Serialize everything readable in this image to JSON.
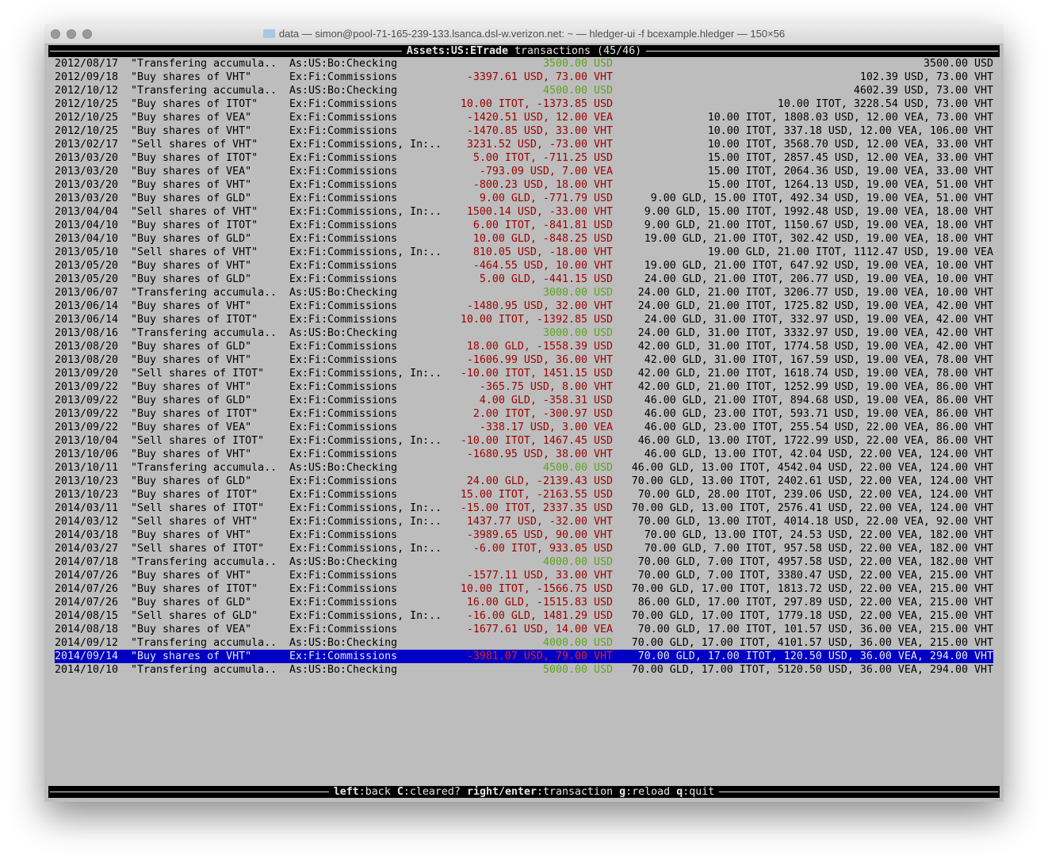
{
  "window": {
    "title": "data — simon@pool-71-165-239-133.lsanca.dsl-w.verizon.net: ~ — hledger-ui -f bcexample.hledger — 150×56"
  },
  "header": {
    "account": "Assets:US:ETrade",
    "rest": " transactions (45/46)"
  },
  "footer": {
    "keys": [
      {
        "key": "left",
        "action": "back"
      },
      {
        "key": "C",
        "action": "cleared?"
      },
      {
        "key": "right/enter",
        "action": "transaction"
      },
      {
        "key": "g",
        "action": "reload"
      },
      {
        "key": "q",
        "action": "quit"
      }
    ]
  },
  "colors": {
    "positive": "#5fa31c",
    "negative": "#9b0000",
    "selection": "#0000c4"
  },
  "selected_index": 44,
  "rows": [
    {
      "date": "2012/08/17",
      "desc": "\"Transfering accumula..",
      "acct": "As:US:Bo:Checking",
      "amt": "3500.00 USD",
      "bal": "3500.00 USD",
      "sign": "pos"
    },
    {
      "date": "2012/09/18",
      "desc": "\"Buy shares of VHT\"",
      "acct": "Ex:Fi:Commissions",
      "amt": "-3397.61 USD, 73.00 VHT",
      "bal": "102.39 USD, 73.00 VHT",
      "sign": "neg"
    },
    {
      "date": "2012/10/12",
      "desc": "\"Transfering accumula..",
      "acct": "As:US:Bo:Checking",
      "amt": "4500.00 USD",
      "bal": "4602.39 USD, 73.00 VHT",
      "sign": "pos"
    },
    {
      "date": "2012/10/25",
      "desc": "\"Buy shares of ITOT\"",
      "acct": "Ex:Fi:Commissions",
      "amt": "10.00 ITOT, -1373.85 USD",
      "bal": "10.00 ITOT, 3228.54 USD, 73.00 VHT",
      "sign": "neg"
    },
    {
      "date": "2012/10/25",
      "desc": "\"Buy shares of VEA\"",
      "acct": "Ex:Fi:Commissions",
      "amt": "-1420.51 USD, 12.00 VEA",
      "bal": "10.00 ITOT, 1808.03 USD, 12.00 VEA, 73.00 VHT",
      "sign": "neg"
    },
    {
      "date": "2012/10/25",
      "desc": "\"Buy shares of VHT\"",
      "acct": "Ex:Fi:Commissions",
      "amt": "-1470.85 USD, 33.00 VHT",
      "bal": "10.00 ITOT, 337.18 USD, 12.00 VEA, 106.00 VHT",
      "sign": "neg"
    },
    {
      "date": "2013/02/17",
      "desc": "\"Sell shares of VHT\"",
      "acct": "Ex:Fi:Commissions, In:..",
      "amt": "3231.52 USD, -73.00 VHT",
      "bal": "10.00 ITOT, 3568.70 USD, 12.00 VEA, 33.00 VHT",
      "sign": "neg"
    },
    {
      "date": "2013/03/20",
      "desc": "\"Buy shares of ITOT\"",
      "acct": "Ex:Fi:Commissions",
      "amt": "5.00 ITOT, -711.25 USD",
      "bal": "15.00 ITOT, 2857.45 USD, 12.00 VEA, 33.00 VHT",
      "sign": "neg"
    },
    {
      "date": "2013/03/20",
      "desc": "\"Buy shares of VEA\"",
      "acct": "Ex:Fi:Commissions",
      "amt": "-793.09 USD, 7.00 VEA",
      "bal": "15.00 ITOT, 2064.36 USD, 19.00 VEA, 33.00 VHT",
      "sign": "neg"
    },
    {
      "date": "2013/03/20",
      "desc": "\"Buy shares of VHT\"",
      "acct": "Ex:Fi:Commissions",
      "amt": "-800.23 USD, 18.00 VHT",
      "bal": "15.00 ITOT, 1264.13 USD, 19.00 VEA, 51.00 VHT",
      "sign": "neg"
    },
    {
      "date": "2013/03/20",
      "desc": "\"Buy shares of GLD\"",
      "acct": "Ex:Fi:Commissions",
      "amt": "9.00 GLD, -771.79 USD",
      "bal": "9.00 GLD, 15.00 ITOT, 492.34 USD, 19.00 VEA, 51.00 VHT",
      "sign": "neg"
    },
    {
      "date": "2013/04/04",
      "desc": "\"Sell shares of VHT\"",
      "acct": "Ex:Fi:Commissions, In:..",
      "amt": "1500.14 USD, -33.00 VHT",
      "bal": "9.00 GLD, 15.00 ITOT, 1992.48 USD, 19.00 VEA, 18.00 VHT",
      "sign": "neg"
    },
    {
      "date": "2013/04/10",
      "desc": "\"Buy shares of ITOT\"",
      "acct": "Ex:Fi:Commissions",
      "amt": "6.00 ITOT, -841.81 USD",
      "bal": "9.00 GLD, 21.00 ITOT, 1150.67 USD, 19.00 VEA, 18.00 VHT",
      "sign": "neg"
    },
    {
      "date": "2013/04/10",
      "desc": "\"Buy shares of GLD\"",
      "acct": "Ex:Fi:Commissions",
      "amt": "10.00 GLD, -848.25 USD",
      "bal": "19.00 GLD, 21.00 ITOT, 302.42 USD, 19.00 VEA, 18.00 VHT",
      "sign": "neg"
    },
    {
      "date": "2013/05/10",
      "desc": "\"Sell shares of VHT\"",
      "acct": "Ex:Fi:Commissions, In:..",
      "amt": "810.05 USD, -18.00 VHT",
      "bal": "19.00 GLD, 21.00 ITOT, 1112.47 USD, 19.00 VEA",
      "sign": "neg"
    },
    {
      "date": "2013/05/20",
      "desc": "\"Buy shares of VHT\"",
      "acct": "Ex:Fi:Commissions",
      "amt": "-464.55 USD, 10.00 VHT",
      "bal": "19.00 GLD, 21.00 ITOT, 647.92 USD, 19.00 VEA, 10.00 VHT",
      "sign": "neg"
    },
    {
      "date": "2013/05/20",
      "desc": "\"Buy shares of GLD\"",
      "acct": "Ex:Fi:Commissions",
      "amt": "5.00 GLD, -441.15 USD",
      "bal": "24.00 GLD, 21.00 ITOT, 206.77 USD, 19.00 VEA, 10.00 VHT",
      "sign": "neg"
    },
    {
      "date": "2013/06/07",
      "desc": "\"Transfering accumula..",
      "acct": "As:US:Bo:Checking",
      "amt": "3000.00 USD",
      "bal": "24.00 GLD, 21.00 ITOT, 3206.77 USD, 19.00 VEA, 10.00 VHT",
      "sign": "pos"
    },
    {
      "date": "2013/06/14",
      "desc": "\"Buy shares of VHT\"",
      "acct": "Ex:Fi:Commissions",
      "amt": "-1480.95 USD, 32.00 VHT",
      "bal": "24.00 GLD, 21.00 ITOT, 1725.82 USD, 19.00 VEA, 42.00 VHT",
      "sign": "neg"
    },
    {
      "date": "2013/06/14",
      "desc": "\"Buy shares of ITOT\"",
      "acct": "Ex:Fi:Commissions",
      "amt": "10.00 ITOT, -1392.85 USD",
      "bal": "24.00 GLD, 31.00 ITOT, 332.97 USD, 19.00 VEA, 42.00 VHT",
      "sign": "neg"
    },
    {
      "date": "2013/08/16",
      "desc": "\"Transfering accumula..",
      "acct": "As:US:Bo:Checking",
      "amt": "3000.00 USD",
      "bal": "24.00 GLD, 31.00 ITOT, 3332.97 USD, 19.00 VEA, 42.00 VHT",
      "sign": "pos"
    },
    {
      "date": "2013/08/20",
      "desc": "\"Buy shares of GLD\"",
      "acct": "Ex:Fi:Commissions",
      "amt": "18.00 GLD, -1558.39 USD",
      "bal": "42.00 GLD, 31.00 ITOT, 1774.58 USD, 19.00 VEA, 42.00 VHT",
      "sign": "neg"
    },
    {
      "date": "2013/08/20",
      "desc": "\"Buy shares of VHT\"",
      "acct": "Ex:Fi:Commissions",
      "amt": "-1606.99 USD, 36.00 VHT",
      "bal": "42.00 GLD, 31.00 ITOT, 167.59 USD, 19.00 VEA, 78.00 VHT",
      "sign": "neg"
    },
    {
      "date": "2013/09/20",
      "desc": "\"Sell shares of ITOT\"",
      "acct": "Ex:Fi:Commissions, In:..",
      "amt": "-10.00 ITOT, 1451.15 USD",
      "bal": "42.00 GLD, 21.00 ITOT, 1618.74 USD, 19.00 VEA, 78.00 VHT",
      "sign": "neg"
    },
    {
      "date": "2013/09/22",
      "desc": "\"Buy shares of VHT\"",
      "acct": "Ex:Fi:Commissions",
      "amt": "-365.75 USD, 8.00 VHT",
      "bal": "42.00 GLD, 21.00 ITOT, 1252.99 USD, 19.00 VEA, 86.00 VHT",
      "sign": "neg"
    },
    {
      "date": "2013/09/22",
      "desc": "\"Buy shares of GLD\"",
      "acct": "Ex:Fi:Commissions",
      "amt": "4.00 GLD, -358.31 USD",
      "bal": "46.00 GLD, 21.00 ITOT, 894.68 USD, 19.00 VEA, 86.00 VHT",
      "sign": "neg"
    },
    {
      "date": "2013/09/22",
      "desc": "\"Buy shares of ITOT\"",
      "acct": "Ex:Fi:Commissions",
      "amt": "2.00 ITOT, -300.97 USD",
      "bal": "46.00 GLD, 23.00 ITOT, 593.71 USD, 19.00 VEA, 86.00 VHT",
      "sign": "neg"
    },
    {
      "date": "2013/09/22",
      "desc": "\"Buy shares of VEA\"",
      "acct": "Ex:Fi:Commissions",
      "amt": "-338.17 USD, 3.00 VEA",
      "bal": "46.00 GLD, 23.00 ITOT, 255.54 USD, 22.00 VEA, 86.00 VHT",
      "sign": "neg"
    },
    {
      "date": "2013/10/04",
      "desc": "\"Sell shares of ITOT\"",
      "acct": "Ex:Fi:Commissions, In:..",
      "amt": "-10.00 ITOT, 1467.45 USD",
      "bal": "46.00 GLD, 13.00 ITOT, 1722.99 USD, 22.00 VEA, 86.00 VHT",
      "sign": "neg"
    },
    {
      "date": "2013/10/06",
      "desc": "\"Buy shares of VHT\"",
      "acct": "Ex:Fi:Commissions",
      "amt": "-1680.95 USD, 38.00 VHT",
      "bal": "46.00 GLD, 13.00 ITOT, 42.04 USD, 22.00 VEA, 124.00 VHT",
      "sign": "neg"
    },
    {
      "date": "2013/10/11",
      "desc": "\"Transfering accumula..",
      "acct": "As:US:Bo:Checking",
      "amt": "4500.00 USD",
      "bal": "46.00 GLD, 13.00 ITOT, 4542.04 USD, 22.00 VEA, 124.00 VHT",
      "sign": "pos"
    },
    {
      "date": "2013/10/23",
      "desc": "\"Buy shares of GLD\"",
      "acct": "Ex:Fi:Commissions",
      "amt": "24.00 GLD, -2139.43 USD",
      "bal": "70.00 GLD, 13.00 ITOT, 2402.61 USD, 22.00 VEA, 124.00 VHT",
      "sign": "neg"
    },
    {
      "date": "2013/10/23",
      "desc": "\"Buy shares of ITOT\"",
      "acct": "Ex:Fi:Commissions",
      "amt": "15.00 ITOT, -2163.55 USD",
      "bal": "70.00 GLD, 28.00 ITOT, 239.06 USD, 22.00 VEA, 124.00 VHT",
      "sign": "neg"
    },
    {
      "date": "2014/03/11",
      "desc": "\"Sell shares of ITOT\"",
      "acct": "Ex:Fi:Commissions, In:..",
      "amt": "-15.00 ITOT, 2337.35 USD",
      "bal": "70.00 GLD, 13.00 ITOT, 2576.41 USD, 22.00 VEA, 124.00 VHT",
      "sign": "neg"
    },
    {
      "date": "2014/03/12",
      "desc": "\"Sell shares of VHT\"",
      "acct": "Ex:Fi:Commissions, In:..",
      "amt": "1437.77 USD, -32.00 VHT",
      "bal": "70.00 GLD, 13.00 ITOT, 4014.18 USD, 22.00 VEA, 92.00 VHT",
      "sign": "neg"
    },
    {
      "date": "2014/03/18",
      "desc": "\"Buy shares of VHT\"",
      "acct": "Ex:Fi:Commissions",
      "amt": "-3989.65 USD, 90.00 VHT",
      "bal": "70.00 GLD, 13.00 ITOT, 24.53 USD, 22.00 VEA, 182.00 VHT",
      "sign": "neg"
    },
    {
      "date": "2014/03/27",
      "desc": "\"Sell shares of ITOT\"",
      "acct": "Ex:Fi:Commissions, In:..",
      "amt": "-6.00 ITOT, 933.05 USD",
      "bal": "70.00 GLD, 7.00 ITOT, 957.58 USD, 22.00 VEA, 182.00 VHT",
      "sign": "neg"
    },
    {
      "date": "2014/07/18",
      "desc": "\"Transfering accumula..",
      "acct": "As:US:Bo:Checking",
      "amt": "4000.00 USD",
      "bal": "70.00 GLD, 7.00 ITOT, 4957.58 USD, 22.00 VEA, 182.00 VHT",
      "sign": "pos"
    },
    {
      "date": "2014/07/26",
      "desc": "\"Buy shares of VHT\"",
      "acct": "Ex:Fi:Commissions",
      "amt": "-1577.11 USD, 33.00 VHT",
      "bal": "70.00 GLD, 7.00 ITOT, 3380.47 USD, 22.00 VEA, 215.00 VHT",
      "sign": "neg"
    },
    {
      "date": "2014/07/26",
      "desc": "\"Buy shares of ITOT\"",
      "acct": "Ex:Fi:Commissions",
      "amt": "10.00 ITOT, -1566.75 USD",
      "bal": "70.00 GLD, 17.00 ITOT, 1813.72 USD, 22.00 VEA, 215.00 VHT",
      "sign": "neg"
    },
    {
      "date": "2014/07/26",
      "desc": "\"Buy shares of GLD\"",
      "acct": "Ex:Fi:Commissions",
      "amt": "16.00 GLD, -1515.83 USD",
      "bal": "86.00 GLD, 17.00 ITOT, 297.89 USD, 22.00 VEA, 215.00 VHT",
      "sign": "neg"
    },
    {
      "date": "2014/08/15",
      "desc": "\"Sell shares of GLD\"",
      "acct": "Ex:Fi:Commissions, In:..",
      "amt": "-16.00 GLD, 1481.29 USD",
      "bal": "70.00 GLD, 17.00 ITOT, 1779.18 USD, 22.00 VEA, 215.00 VHT",
      "sign": "neg"
    },
    {
      "date": "2014/08/18",
      "desc": "\"Buy shares of VEA\"",
      "acct": "Ex:Fi:Commissions",
      "amt": "-1677.61 USD, 14.00 VEA",
      "bal": "70.00 GLD, 17.00 ITOT, 101.57 USD, 36.00 VEA, 215.00 VHT",
      "sign": "neg"
    },
    {
      "date": "2014/09/12",
      "desc": "\"Transfering accumula..",
      "acct": "As:US:Bo:Checking",
      "amt": "4000.00 USD",
      "bal": "70.00 GLD, 17.00 ITOT, 4101.57 USD, 36.00 VEA, 215.00 VHT",
      "sign": "pos"
    },
    {
      "date": "2014/09/14",
      "desc": "\"Buy shares of VHT\"",
      "acct": "Ex:Fi:Commissions",
      "amt": "-3981.07 USD, 79.00 VHT",
      "bal": "70.00 GLD, 17.00 ITOT, 120.50 USD, 36.00 VEA, 294.00 VHT",
      "sign": "neg"
    },
    {
      "date": "2014/10/10",
      "desc": "\"Transfering accumula..",
      "acct": "As:US:Bo:Checking",
      "amt": "5000.00 USD",
      "bal": "70.00 GLD, 17.00 ITOT, 5120.50 USD, 36.00 VEA, 294.00 VHT",
      "sign": "pos"
    }
  ]
}
